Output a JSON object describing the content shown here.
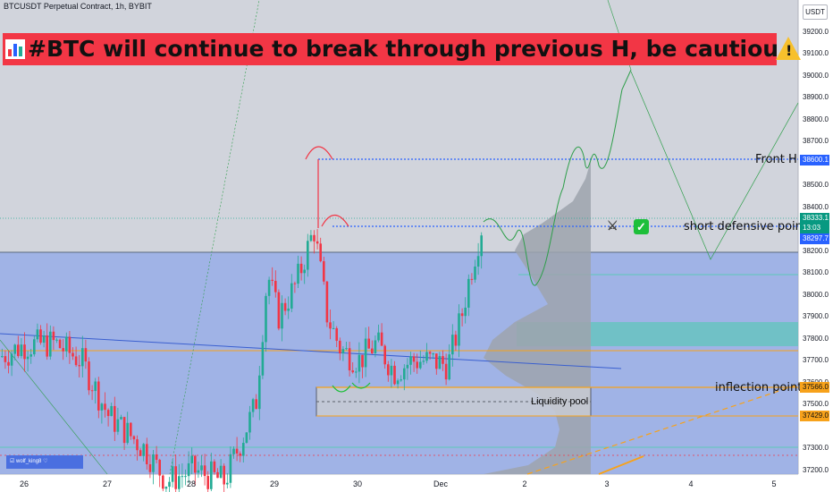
{
  "header": {
    "symbol": "BTCUSDT Perpetual Contract, 1h, BYBIT",
    "currency": "USDT"
  },
  "banner": {
    "text": "#BTC will continue to break through previous H, be cautious in shorting",
    "warning_glyph": "!"
  },
  "annotations": {
    "front_h": "Front H",
    "short_defensive": "short defensive point",
    "inflection": "inflection point",
    "liquidity_pool": "Liquidity pool",
    "author_tag": "wolf_king8"
  },
  "price_badges": [
    {
      "value": "38600.1",
      "color": "#2962ff"
    },
    {
      "value": "38333.1",
      "color": "#089981"
    },
    {
      "value": "13:03",
      "color": "#089981"
    },
    {
      "value": "38297.7",
      "color": "#2962ff"
    },
    {
      "value": "37566.0",
      "color": "#f7a21b"
    },
    {
      "value": "37429.0",
      "color": "#f7a21b"
    }
  ],
  "chart_data": {
    "type": "candlestick",
    "symbol": "BTCUSDT",
    "timeframe": "1h",
    "y_axis": {
      "min": 37150,
      "max": 39300,
      "ticks": [
        "39200.0",
        "39100.0",
        "39000.0",
        "38900.0",
        "38800.0",
        "38700.0",
        "38500.0",
        "38400.0",
        "38200.0",
        "38100.0",
        "38000.0",
        "37900.0",
        "37800.0",
        "37700.0",
        "37600.0",
        "37500.0",
        "37300.0",
        "37200.0"
      ]
    },
    "x_axis": {
      "labels": [
        "26",
        "27",
        "28",
        "29",
        "30",
        "Dec",
        "2",
        "3",
        "4",
        "5"
      ]
    },
    "key_levels": {
      "front_h": 38600.1,
      "short_defensive": 38333.1,
      "inflection": 37566.0,
      "liquidity_pool_low": 37429.0
    },
    "colors": {
      "up": "#22ab94",
      "down": "#f23645",
      "zone": "#8fa8ea",
      "teal_zone": "#5bc8b8",
      "forecast": "#2e9e4a"
    }
  }
}
